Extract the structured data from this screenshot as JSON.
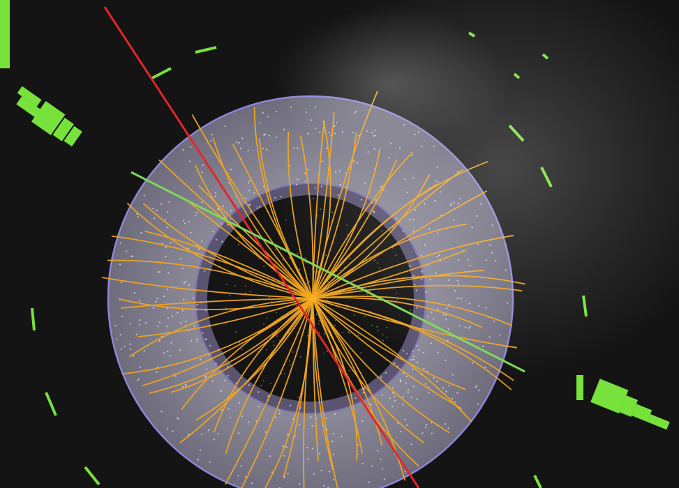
{
  "photo": {
    "subject": "particle-collision-event-display",
    "colors": {
      "background": "#141414",
      "outer_disc": "#8c8a99",
      "disc_outline": "#8e86d8",
      "inner_ring": "#5a5470",
      "core": "#151515",
      "tracks": "#f2a51f",
      "red_track": "#e2262b",
      "green_track": "#7fd857",
      "calorimeter": "#78e23c",
      "hits": "#e6e6f0",
      "glare": "#ffffff"
    },
    "track_count": 72,
    "calorimeter_blocks": 2,
    "red_track_count": 1,
    "green_track_count": 1
  }
}
